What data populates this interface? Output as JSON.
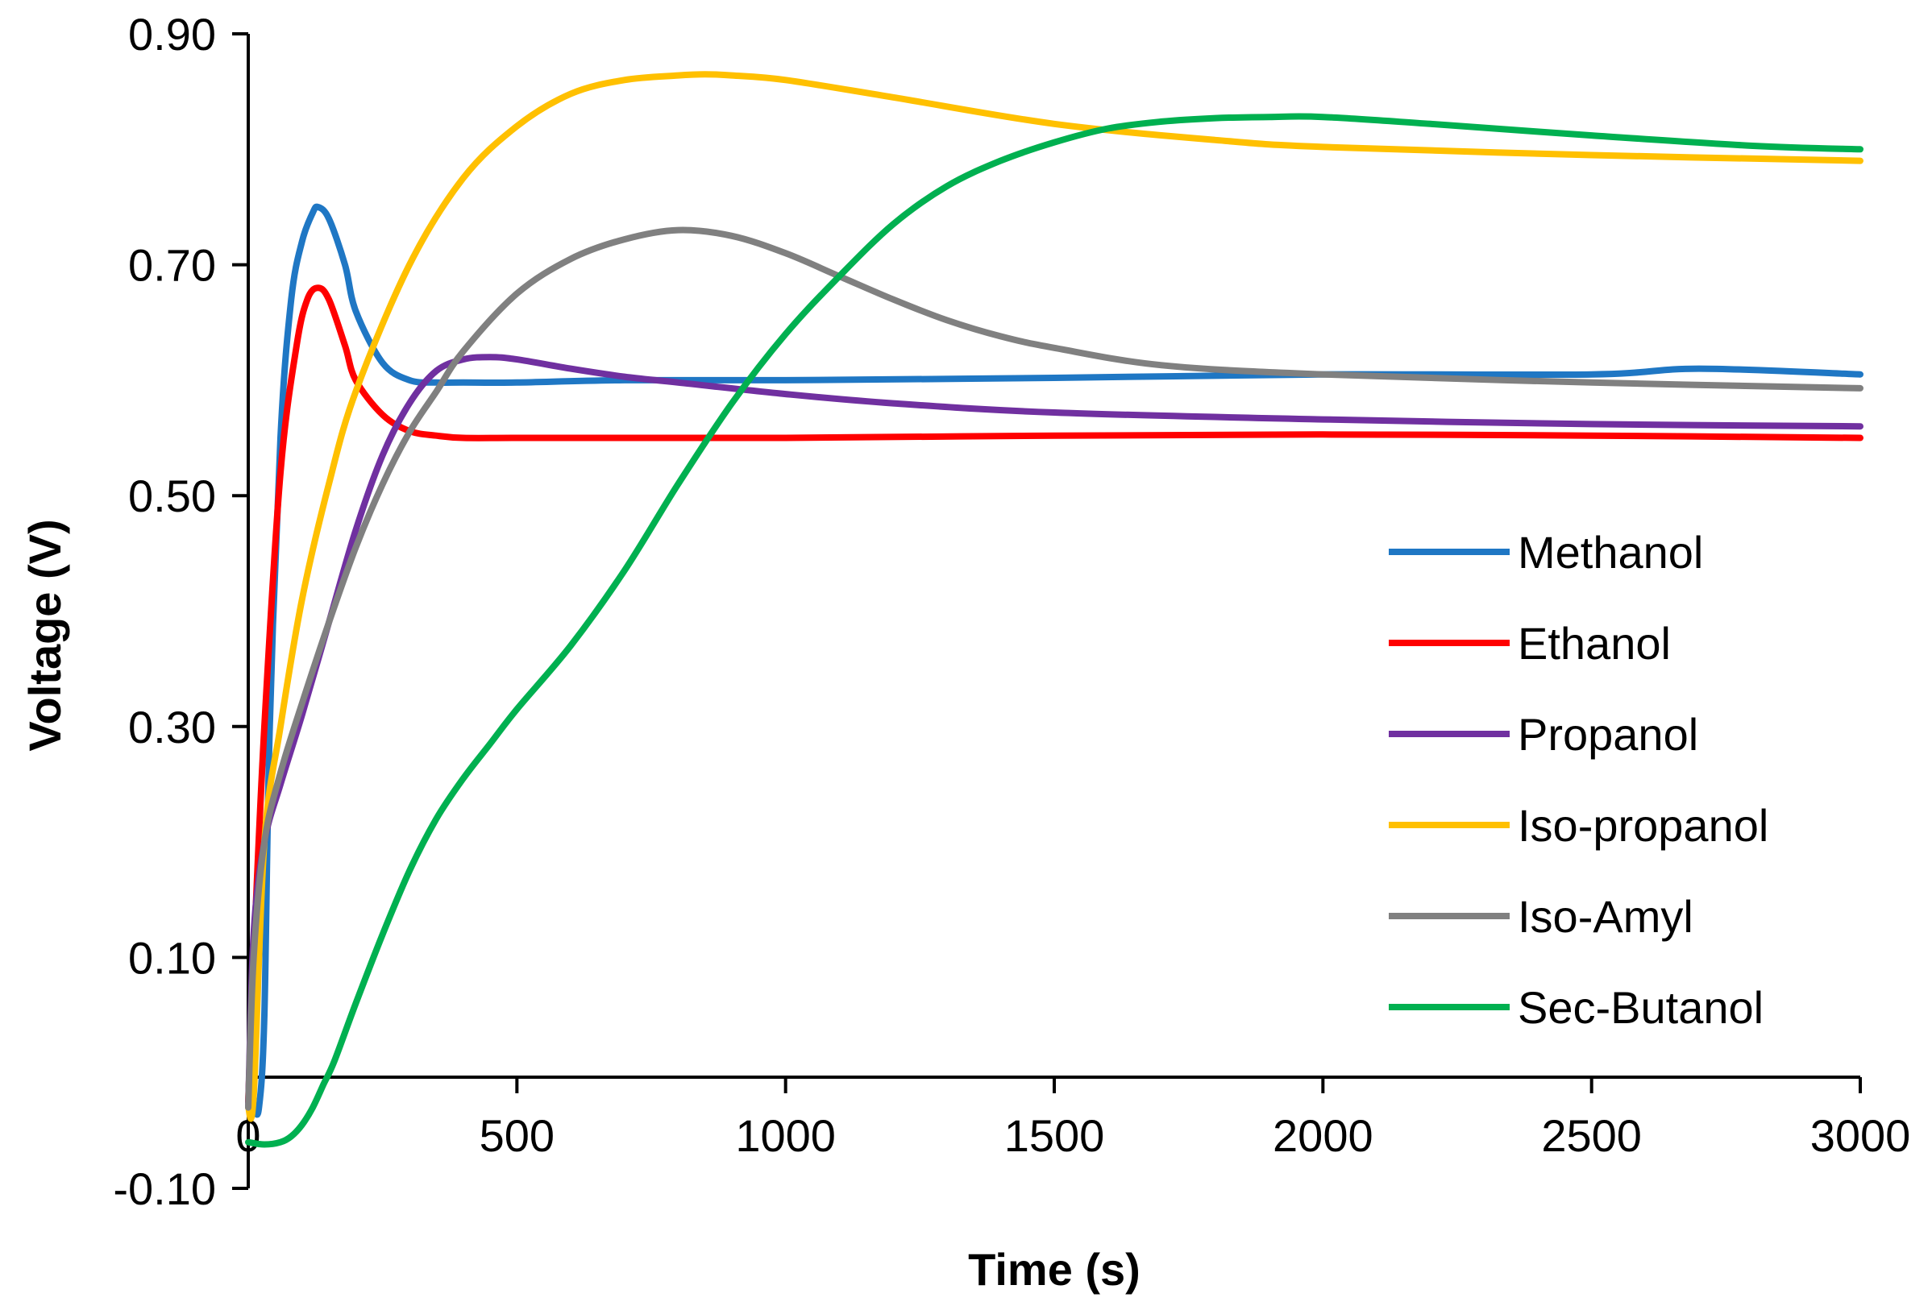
{
  "chart_data": {
    "type": "line",
    "title": "",
    "xlabel": "Time (s)",
    "ylabel": "Voltage (V)",
    "xlim": [
      0,
      3000
    ],
    "ylim": [
      -0.1,
      0.9
    ],
    "xticks": [
      0,
      500,
      1000,
      1500,
      2000,
      2500,
      3000
    ],
    "xtick_labels": [
      "0",
      "500",
      "1000",
      "1500",
      "2000",
      "2500",
      "3000"
    ],
    "yticks": [
      -0.1,
      0.1,
      0.3,
      0.5,
      0.7,
      0.9
    ],
    "ytick_labels": [
      "-0.10",
      "0.10",
      "0.30",
      "0.50",
      "0.70",
      "0.90"
    ],
    "grid": false,
    "legend_position": "right",
    "series": [
      {
        "name": "Methanol",
        "color": "#1F77C4",
        "x": [
          0,
          10,
          20,
          30,
          40,
          60,
          80,
          100,
          120,
          130,
          150,
          180,
          200,
          250,
          300,
          350,
          400,
          500,
          700,
          1000,
          1500,
          2000,
          2500,
          2700,
          3000
        ],
        "y": [
          -0.025,
          -0.03,
          -0.03,
          0.05,
          0.3,
          0.55,
          0.67,
          0.72,
          0.745,
          0.75,
          0.74,
          0.7,
          0.66,
          0.615,
          0.6,
          0.598,
          0.598,
          0.598,
          0.6,
          0.6,
          0.602,
          0.605,
          0.605,
          0.61,
          0.605
        ]
      },
      {
        "name": "Ethanol",
        "color": "#FF0000",
        "x": [
          0,
          10,
          30,
          60,
          90,
          110,
          130,
          150,
          180,
          200,
          250,
          300,
          350,
          400,
          500,
          700,
          1000,
          1500,
          2000,
          2500,
          3000
        ],
        "y": [
          -0.025,
          0.1,
          0.3,
          0.52,
          0.63,
          0.67,
          0.68,
          0.67,
          0.63,
          0.6,
          0.57,
          0.556,
          0.552,
          0.55,
          0.55,
          0.55,
          0.55,
          0.552,
          0.553,
          0.552,
          0.55
        ]
      },
      {
        "name": "Propanol",
        "color": "#7030A0",
        "x": [
          0,
          10,
          30,
          60,
          100,
          150,
          200,
          250,
          300,
          350,
          400,
          450,
          500,
          600,
          700,
          800,
          1000,
          1200,
          1500,
          2000,
          2500,
          3000
        ],
        "y": [
          -0.03,
          0.12,
          0.2,
          0.25,
          0.31,
          0.39,
          0.47,
          0.535,
          0.58,
          0.608,
          0.618,
          0.62,
          0.618,
          0.61,
          0.603,
          0.598,
          0.588,
          0.58,
          0.572,
          0.566,
          0.562,
          0.56
        ]
      },
      {
        "name": "Iso-propanol",
        "color": "#FFC000",
        "x": [
          0,
          10,
          30,
          60,
          100,
          150,
          200,
          300,
          400,
          500,
          600,
          700,
          800,
          850,
          900,
          1000,
          1200,
          1500,
          1800,
          2000,
          2500,
          3000
        ],
        "y": [
          -0.03,
          -0.02,
          0.2,
          0.3,
          0.41,
          0.51,
          0.59,
          0.7,
          0.775,
          0.82,
          0.848,
          0.86,
          0.864,
          0.865,
          0.864,
          0.86,
          0.845,
          0.822,
          0.808,
          0.802,
          0.795,
          0.79
        ]
      },
      {
        "name": "Iso-Amyl",
        "color": "#808080",
        "x": [
          0,
          10,
          30,
          60,
          100,
          150,
          200,
          250,
          300,
          350,
          400,
          500,
          600,
          700,
          800,
          900,
          1000,
          1100,
          1200,
          1300,
          1400,
          1500,
          1700,
          2000,
          2500,
          3000
        ],
        "y": [
          -0.03,
          0.1,
          0.2,
          0.26,
          0.32,
          0.39,
          0.455,
          0.51,
          0.555,
          0.59,
          0.625,
          0.675,
          0.705,
          0.722,
          0.73,
          0.725,
          0.71,
          0.69,
          0.67,
          0.652,
          0.638,
          0.628,
          0.613,
          0.605,
          0.598,
          0.593
        ]
      },
      {
        "name": "Sec-Butanol",
        "color": "#00B050",
        "x": [
          0,
          30,
          60,
          80,
          100,
          120,
          140,
          160,
          200,
          250,
          300,
          350,
          400,
          450,
          500,
          600,
          700,
          800,
          900,
          1000,
          1100,
          1200,
          1300,
          1400,
          1500,
          1600,
          1700,
          1800,
          1900,
          2000,
          2200,
          2500,
          2800,
          3000
        ],
        "y": [
          -0.06,
          -0.062,
          -0.06,
          -0.055,
          -0.045,
          -0.03,
          -0.01,
          0.01,
          0.06,
          0.12,
          0.175,
          0.22,
          0.255,
          0.285,
          0.315,
          0.37,
          0.435,
          0.51,
          0.58,
          0.64,
          0.69,
          0.735,
          0.768,
          0.79,
          0.806,
          0.818,
          0.824,
          0.827,
          0.828,
          0.828,
          0.822,
          0.812,
          0.803,
          0.8
        ]
      }
    ]
  }
}
